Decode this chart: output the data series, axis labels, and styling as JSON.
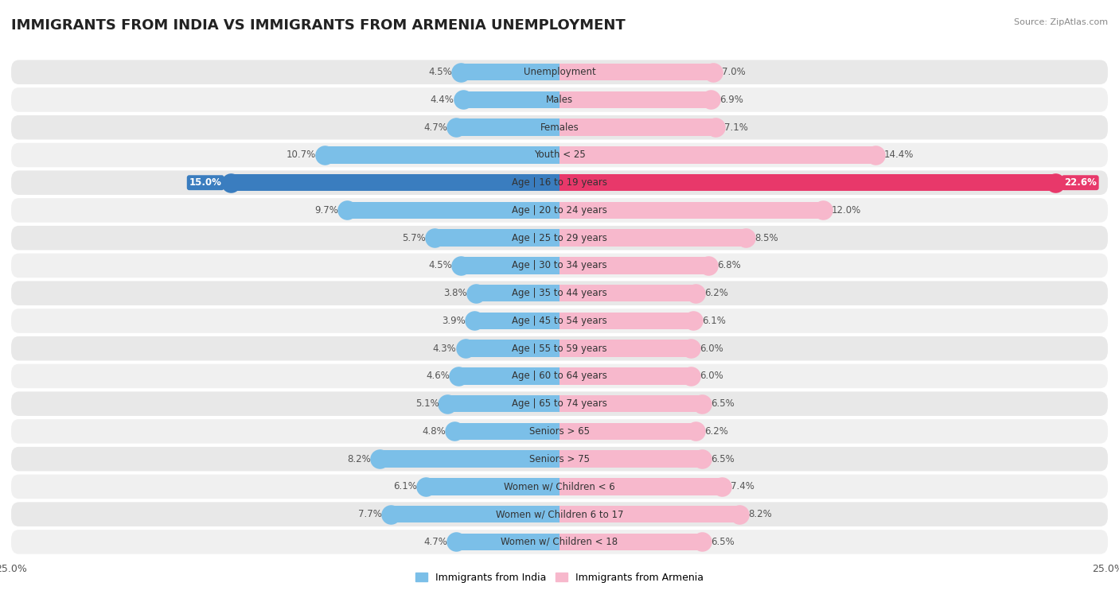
{
  "title": "IMMIGRANTS FROM INDIA VS IMMIGRANTS FROM ARMENIA UNEMPLOYMENT",
  "source": "Source: ZipAtlas.com",
  "categories": [
    "Unemployment",
    "Males",
    "Females",
    "Youth < 25",
    "Age | 16 to 19 years",
    "Age | 20 to 24 years",
    "Age | 25 to 29 years",
    "Age | 30 to 34 years",
    "Age | 35 to 44 years",
    "Age | 45 to 54 years",
    "Age | 55 to 59 years",
    "Age | 60 to 64 years",
    "Age | 65 to 74 years",
    "Seniors > 65",
    "Seniors > 75",
    "Women w/ Children < 6",
    "Women w/ Children 6 to 17",
    "Women w/ Children < 18"
  ],
  "india_values": [
    4.5,
    4.4,
    4.7,
    10.7,
    15.0,
    9.7,
    5.7,
    4.5,
    3.8,
    3.9,
    4.3,
    4.6,
    5.1,
    4.8,
    8.2,
    6.1,
    7.7,
    4.7
  ],
  "armenia_values": [
    7.0,
    6.9,
    7.1,
    14.4,
    22.6,
    12.0,
    8.5,
    6.8,
    6.2,
    6.1,
    6.0,
    6.0,
    6.5,
    6.2,
    6.5,
    7.4,
    8.2,
    6.5
  ],
  "india_color": "#7bbfe8",
  "armenia_color": "#f7b8cc",
  "india_highlight_color": "#3a7dbf",
  "armenia_highlight_color": "#e8386a",
  "highlight_row": 4,
  "xlim": 25.0,
  "row_bg_color": "#e8e8e8",
  "row_alt_color": "#f0f0f0",
  "legend_india": "Immigrants from India",
  "legend_armenia": "Immigrants from Armenia",
  "title_fontsize": 13,
  "label_fontsize": 8.5,
  "value_fontsize": 8.5
}
